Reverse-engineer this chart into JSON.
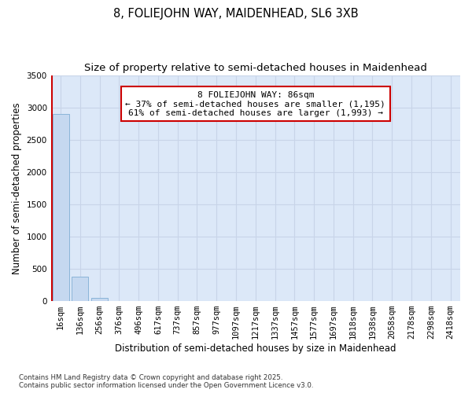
{
  "title": "8, FOLIEJOHN WAY, MAIDENHEAD, SL6 3XB",
  "subtitle": "Size of property relative to semi-detached houses in Maidenhead",
  "xlabel": "Distribution of semi-detached houses by size in Maidenhead",
  "ylabel": "Number of semi-detached properties",
  "categories": [
    "16sqm",
    "136sqm",
    "256sqm",
    "376sqm",
    "496sqm",
    "617sqm",
    "737sqm",
    "857sqm",
    "977sqm",
    "1097sqm",
    "1217sqm",
    "1337sqm",
    "1457sqm",
    "1577sqm",
    "1697sqm",
    "1818sqm",
    "1938sqm",
    "2058sqm",
    "2178sqm",
    "2298sqm",
    "2418sqm"
  ],
  "values": [
    2900,
    370,
    50,
    0,
    0,
    0,
    0,
    0,
    0,
    0,
    0,
    0,
    0,
    0,
    0,
    0,
    0,
    0,
    0,
    0,
    0
  ],
  "bar_color": "#c5d8f0",
  "bar_edge_color": "#8ab4d8",
  "vline_color": "#cc0000",
  "vline_x": -0.43,
  "annotation_text": "8 FOLIEJOHN WAY: 86sqm\n← 37% of semi-detached houses are smaller (1,195)\n61% of semi-detached houses are larger (1,993) →",
  "annotation_box_color": "#cc0000",
  "annotation_bg": "#ffffff",
  "ylim": [
    0,
    3500
  ],
  "yticks": [
    0,
    500,
    1000,
    1500,
    2000,
    2500,
    3000,
    3500
  ],
  "grid_color": "#c8d4e8",
  "bg_color": "#dce8f8",
  "title_fontsize": 10.5,
  "subtitle_fontsize": 9.5,
  "axis_label_fontsize": 8.5,
  "tick_fontsize": 7.5,
  "footer": "Contains HM Land Registry data © Crown copyright and database right 2025.\nContains public sector information licensed under the Open Government Licence v3.0."
}
